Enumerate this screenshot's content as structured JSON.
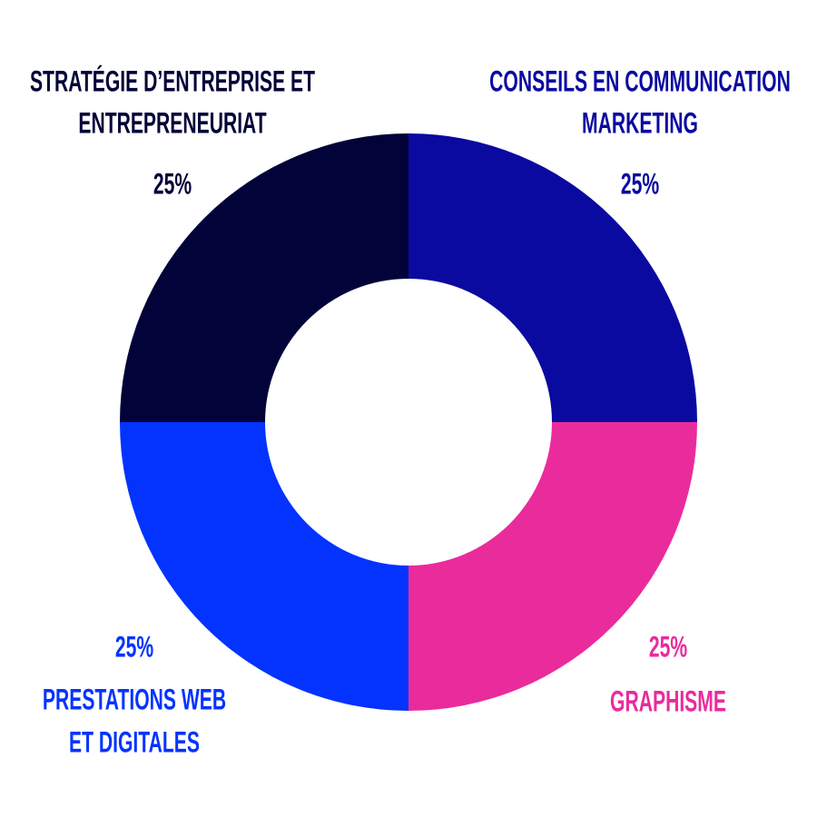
{
  "chart_data": {
    "type": "donut",
    "categories": [
      [
        "CONSEILS EN COMMUNICATION",
        "MARKETING"
      ],
      [
        "GRAPHISME"
      ],
      [
        "PRESTATIONS WEB",
        "ET DIGITALES"
      ],
      [
        "STRATÉGIE D’ENTREPRISE ET",
        "ENTREPRENEURIAT"
      ]
    ],
    "values": [
      25,
      25,
      25,
      25
    ],
    "value_labels": [
      "25%",
      "25%",
      "25%",
      "25%"
    ],
    "colors": [
      "#0a0aa0",
      "#ea2b9c",
      "#0433ff",
      "#020338"
    ]
  }
}
